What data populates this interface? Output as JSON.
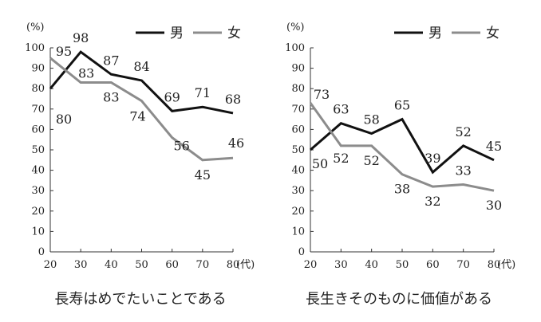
{
  "chart_data": [
    {
      "type": "line",
      "title": "長寿はめでたいことである",
      "ylabel_unit": "(%)",
      "xlabel_unit": "(代)",
      "x": [
        20,
        30,
        40,
        50,
        60,
        70,
        80
      ],
      "ylim": [
        0,
        100
      ],
      "yticks": [
        0,
        10,
        20,
        30,
        40,
        50,
        60,
        70,
        80,
        90,
        100
      ],
      "legend_position": "top-right",
      "grid": false,
      "series": [
        {
          "name": "男",
          "color": "#111111",
          "values": [
            80,
            98,
            87,
            84,
            69,
            71,
            68
          ]
        },
        {
          "name": "女",
          "color": "#8c8c8c",
          "values": [
            95,
            83,
            83,
            74,
            56,
            45,
            46
          ]
        }
      ]
    },
    {
      "type": "line",
      "title": "長生きそのものに価値がある",
      "ylabel_unit": "(%)",
      "xlabel_unit": "(代)",
      "x": [
        20,
        30,
        40,
        50,
        60,
        70,
        80
      ],
      "ylim": [
        0,
        100
      ],
      "yticks": [
        0,
        10,
        20,
        30,
        40,
        50,
        60,
        70,
        80,
        90,
        100
      ],
      "legend_position": "top-right",
      "grid": false,
      "series": [
        {
          "name": "男",
          "color": "#111111",
          "values": [
            50,
            63,
            58,
            65,
            39,
            52,
            45
          ]
        },
        {
          "name": "女",
          "color": "#8c8c8c",
          "values": [
            73,
            52,
            52,
            38,
            32,
            33,
            30
          ]
        }
      ]
    }
  ]
}
